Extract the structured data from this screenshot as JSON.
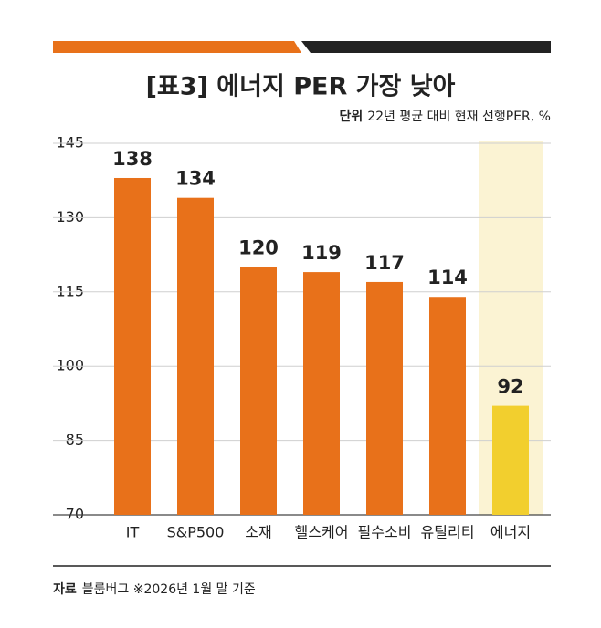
{
  "chart_data": {
    "type": "bar",
    "title": "[표3] 에너지 PER 가장 낮아",
    "unit_label": "단위",
    "unit_text": "22년 평균 대비 현재 선행PER, %",
    "categories": [
      "IT",
      "S&P500",
      "소재",
      "헬스케어",
      "필수소비",
      "유틸리티",
      "에너지"
    ],
    "values": [
      138,
      134,
      120,
      119,
      117,
      114,
      92
    ],
    "colors": [
      "#e8711a",
      "#e8711a",
      "#e8711a",
      "#e8711a",
      "#e8711a",
      "#e8711a",
      "#f2cf2e"
    ],
    "value_label_colors": [
      "#e8711a",
      "#e8711a",
      "#e8711a",
      "#e8711a",
      "#e8711a",
      "#e8711a",
      "#222222"
    ],
    "highlight_color": "#fbf3d3",
    "ylim": [
      70,
      145
    ],
    "yticks": [
      70,
      85,
      100,
      115,
      130,
      145
    ],
    "grid": true,
    "source_label": "자료",
    "source_text": "블룸버그  ※2026년 1월 말 기준"
  }
}
